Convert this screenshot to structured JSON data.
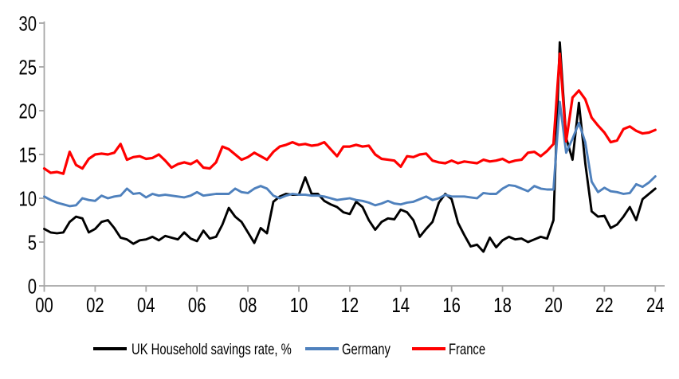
{
  "chart": {
    "background": "#FFFFFF",
    "axis_color": "#A6A6A6",
    "text_color": "#000000"
  },
  "chart_data": {
    "type": "line",
    "title": "",
    "xlabel": "",
    "ylabel": "",
    "grid": false,
    "legend_position": "bottom",
    "x_axis": {
      "tick_labels": [
        "00",
        "02",
        "04",
        "06",
        "08",
        "10",
        "12",
        "14",
        "16",
        "18",
        "20",
        "22",
        "24"
      ],
      "frequency": "quarterly",
      "points_per_tick_interval": 8
    },
    "y_axis": {
      "ticks": [
        0,
        5,
        10,
        15,
        20,
        25,
        30
      ],
      "ylim": [
        0,
        30
      ]
    },
    "series": [
      {
        "name": "UK Household savings rate, %",
        "color": "#000000",
        "values": [
          6.5,
          6.1,
          6.0,
          6.1,
          7.3,
          7.9,
          7.7,
          6.1,
          6.5,
          7.3,
          7.5,
          6.6,
          5.5,
          5.3,
          4.8,
          5.2,
          5.3,
          5.6,
          5.2,
          5.7,
          5.5,
          5.3,
          6.1,
          5.4,
          5.1,
          6.3,
          5.4,
          5.6,
          7.0,
          8.9,
          7.9,
          7.3,
          6.1,
          4.9,
          6.6,
          6.0,
          9.6,
          10.2,
          10.5,
          10.4,
          10.4,
          12.4,
          10.5,
          10.5,
          9.7,
          9.3,
          9.0,
          8.4,
          8.2,
          9.6,
          9.0,
          7.5,
          6.4,
          7.3,
          7.7,
          7.6,
          8.7,
          8.4,
          7.5,
          5.6,
          6.5,
          7.3,
          9.5,
          10.5,
          9.9,
          7.2,
          5.8,
          4.5,
          4.7,
          3.9,
          5.5,
          4.4,
          5.2,
          5.6,
          5.3,
          5.4,
          5.0,
          5.3,
          5.6,
          5.4,
          7.5,
          27.8,
          16.9,
          14.4,
          20.9,
          14.0,
          8.5,
          7.9,
          8.0,
          6.6,
          7.0,
          7.9,
          9.0,
          7.5,
          9.9,
          10.5,
          11.1
        ]
      },
      {
        "name": "Germany",
        "color": "#4F81BD",
        "values": [
          10.2,
          9.8,
          9.5,
          9.3,
          9.1,
          9.2,
          10.0,
          9.8,
          9.7,
          10.3,
          10.0,
          10.2,
          10.3,
          11.1,
          10.5,
          10.6,
          10.1,
          10.5,
          10.3,
          10.4,
          10.3,
          10.2,
          10.1,
          10.3,
          10.7,
          10.3,
          10.4,
          10.5,
          10.5,
          10.5,
          11.1,
          10.7,
          10.6,
          11.1,
          11.4,
          11.1,
          10.3,
          10.0,
          10.3,
          10.5,
          10.4,
          10.4,
          10.3,
          10.3,
          10.2,
          10.0,
          9.8,
          9.9,
          10.0,
          9.8,
          9.7,
          9.5,
          9.2,
          9.4,
          9.7,
          9.4,
          9.3,
          9.5,
          9.6,
          9.9,
          10.2,
          9.8,
          10.0,
          10.4,
          10.2,
          10.2,
          10.2,
          10.1,
          10.0,
          10.6,
          10.5,
          10.5,
          11.1,
          11.5,
          11.4,
          11.1,
          10.8,
          11.4,
          11.1,
          11.0,
          11.0,
          21.0,
          15.2,
          16.8,
          18.6,
          16.4,
          11.9,
          10.7,
          11.2,
          10.8,
          10.7,
          10.5,
          10.6,
          11.6,
          11.3,
          11.8,
          12.5
        ]
      },
      {
        "name": "France",
        "color": "#FF0000",
        "values": [
          13.4,
          12.9,
          13.0,
          12.8,
          15.3,
          13.8,
          13.4,
          14.5,
          15.0,
          15.1,
          15.0,
          15.2,
          16.2,
          14.4,
          14.7,
          14.8,
          14.5,
          14.6,
          15.0,
          14.3,
          13.5,
          13.9,
          14.1,
          13.9,
          14.3,
          13.5,
          13.4,
          14.1,
          15.9,
          15.6,
          15.0,
          14.4,
          14.7,
          15.2,
          14.8,
          14.4,
          15.3,
          15.9,
          16.1,
          16.4,
          16.1,
          16.2,
          16.0,
          16.1,
          16.4,
          15.6,
          14.8,
          15.9,
          15.9,
          16.1,
          15.9,
          16.0,
          15.0,
          14.5,
          14.4,
          14.3,
          13.6,
          14.8,
          14.7,
          15.0,
          15.1,
          14.3,
          14.1,
          14.0,
          14.3,
          14.0,
          14.2,
          14.1,
          14.0,
          14.4,
          14.2,
          14.3,
          14.5,
          14.1,
          14.3,
          14.4,
          15.2,
          15.3,
          14.8,
          15.4,
          16.2,
          26.5,
          16.5,
          21.5,
          22.3,
          21.3,
          19.2,
          18.3,
          17.5,
          16.4,
          16.6,
          17.9,
          18.2,
          17.7,
          17.4,
          17.5,
          17.8
        ]
      }
    ]
  }
}
